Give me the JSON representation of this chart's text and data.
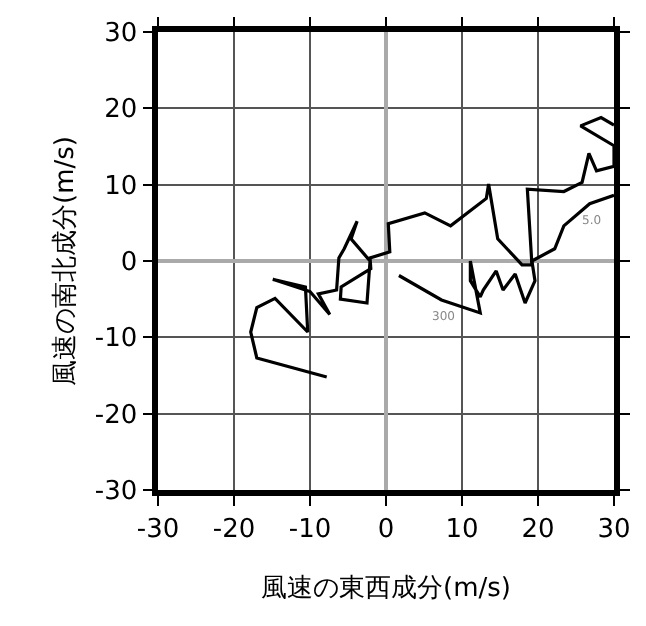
{
  "chart_data": {
    "type": "line",
    "xlabel": "風速の東西成分(m/s)",
    "ylabel": "風速の南北成分(m/s)",
    "xlim": [
      -30,
      30
    ],
    "ylim": [
      -30,
      30
    ],
    "xticks": [
      -30,
      -20,
      -10,
      0,
      10,
      20,
      30
    ],
    "yticks": [
      -30,
      -20,
      -10,
      0,
      10,
      20,
      30
    ],
    "grid": true,
    "marker": "none",
    "line_style": "solid",
    "series": [
      {
        "color": "#000000",
        "x": [
          -7.8,
          -17,
          -17.8,
          -17,
          -14.6,
          -10.3,
          -10.6,
          -14.9,
          -10,
          -7.4,
          -8.9,
          -6.5,
          -6.2,
          -5.5,
          -3.8,
          -4.6,
          -2.1,
          -2.5,
          -6,
          -5.9,
          -2,
          -2.1,
          0.5,
          0.3,
          5.1,
          8.5,
          13.2,
          13.5,
          14.7,
          17.9,
          19.2,
          18.6,
          23.4,
          25.8,
          26.7,
          27.7,
          30,
          30,
          25.6,
          28.3,
          30
        ],
        "values": [
          -15.2,
          -12.7,
          -9.3,
          -6.1,
          -4.9,
          -9.3,
          -3.4,
          -2.4,
          -4,
          -7,
          -4.3,
          -3.8,
          0.4,
          1.6,
          5.2,
          2.9,
          0,
          -5.5,
          -5,
          -3.4,
          -1,
          0.4,
          1.2,
          4.9,
          6.3,
          4.6,
          8.2,
          10.1,
          2.9,
          -0.5,
          -0.5,
          9.4,
          9.1,
          10.3,
          14.1,
          11.8,
          12.4,
          15.1,
          17.7,
          18.8,
          17.8
        ]
      },
      {
        "color": "#000000",
        "x": [
          1.7,
          7.3,
          12.4,
          11.1,
          11.1,
          12.4,
          12.8,
          14.5,
          15.4,
          17,
          18.3,
          19.6,
          19.2,
          22.2,
          23.4,
          26.8,
          30
        ],
        "values": [
          -1.9,
          -5.1,
          -6.8,
          0,
          -2.6,
          -4.7,
          -3.8,
          -1.3,
          -3.8,
          -1.7,
          -5.5,
          -2.6,
          0,
          1.6,
          4.6,
          7.5,
          8.6
        ]
      }
    ],
    "annotations": [
      {
        "text": "5.0",
        "x": 26.8,
        "y": 7.5
      },
      {
        "text": "300",
        "x": 7.3,
        "y": -5.1
      }
    ]
  }
}
